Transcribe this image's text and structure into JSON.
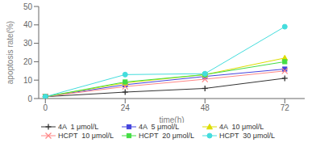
{
  "chart_data": {
    "type": "line",
    "x": [
      0,
      24,
      48,
      72
    ],
    "series": [
      {
        "name": "4A  1 μmol/L",
        "color": "#333333",
        "marker": "plus",
        "values": [
          1,
          3.5,
          5.5,
          11
        ]
      },
      {
        "name": "4A  5 μmol/L",
        "color": "#4444dd",
        "marker": "square",
        "values": [
          1,
          7.5,
          12,
          16
        ]
      },
      {
        "name": "4A  10 μmol/L",
        "color": "#dddd00",
        "marker": "triangle",
        "values": [
          1,
          8.5,
          13,
          22
        ]
      },
      {
        "name": "HCPT  10 μmol/L",
        "color": "#ff8888",
        "marker": "cross",
        "values": [
          1,
          6.5,
          10.5,
          15
        ]
      },
      {
        "name": "HCPT  20 μmol/L",
        "color": "#44dd44",
        "marker": "square",
        "values": [
          1,
          9,
          13,
          20
        ]
      },
      {
        "name": "HCPT  30 μmol/L",
        "color": "#44dddd",
        "marker": "circle",
        "values": [
          1,
          13,
          13.5,
          39
        ]
      }
    ],
    "x_label": "time(h)",
    "y_label": "apoptosis rate(%)",
    "xlim": [
      -2,
      78
    ],
    "ylim": [
      0,
      50
    ],
    "xticks": [
      0,
      24,
      48,
      72
    ],
    "yticks": [
      0,
      10,
      20,
      30,
      40,
      50
    ],
    "grid": false,
    "legend": "bottom"
  }
}
